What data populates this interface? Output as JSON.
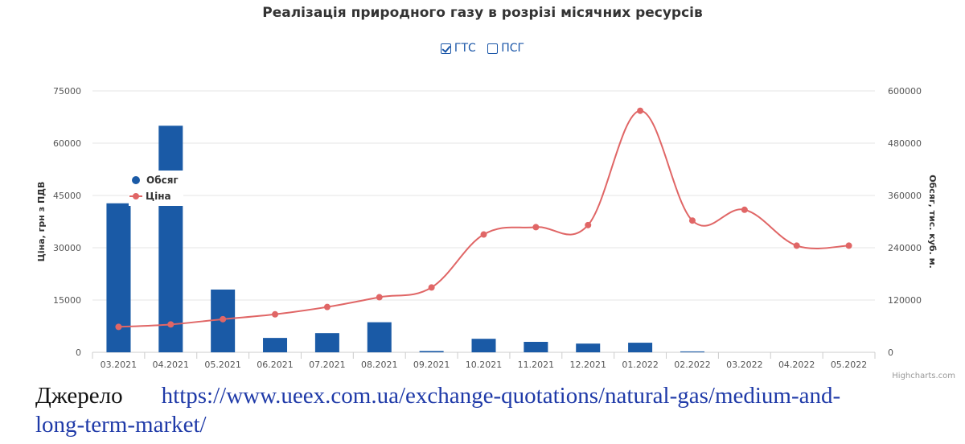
{
  "title": "Реалізація природного газу в розрізі місячних ресурсів",
  "filters": [
    {
      "label": "ГТС",
      "checked": true
    },
    {
      "label": "ПСГ",
      "checked": false
    }
  ],
  "credit": "Highcharts.com",
  "source": {
    "label": "Джерело",
    "url_part1": "https://www.ueex.com.ua/exchange-quotations/natural-gas/medium-and-",
    "url_part2": "long-term-market/"
  },
  "legend": {
    "volume": "Обсяг",
    "price": "Ціна"
  },
  "colors": {
    "bars": "#1a5aa6",
    "line": "#e06666",
    "grid": "#e6e6e6",
    "text": "#333333"
  },
  "chart_data": {
    "type": "bar+line",
    "title": "Реалізація природного газу в розрізі місячних ресурсів",
    "categories": [
      "03.2021",
      "04.2021",
      "05.2021",
      "06.2021",
      "07.2021",
      "08.2021",
      "09.2021",
      "10.2021",
      "11.2021",
      "12.2021",
      "01.2022",
      "02.2022",
      "03.2022",
      "04.2022",
      "05.2022"
    ],
    "y_left": {
      "label": "Ціна, грн з ПДВ",
      "min": 0,
      "max": 75000,
      "ticks": [
        0,
        15000,
        30000,
        45000,
        60000,
        75000
      ]
    },
    "y_right": {
      "label": "Обсяг, тис. куб. м.",
      "min": 0,
      "max": 600000,
      "ticks": [
        0,
        120000,
        240000,
        360000,
        480000,
        600000
      ]
    },
    "series": [
      {
        "name": "Обсяг",
        "type": "bar",
        "axis": "right",
        "values": [
          342000,
          520000,
          144000,
          33000,
          44000,
          69000,
          3000,
          31000,
          24000,
          20000,
          22000,
          2000,
          0,
          0,
          0
        ],
        "secondary_values": [
          332000,
          null,
          null,
          null,
          null,
          null,
          null,
          null,
          null,
          null,
          null,
          null,
          null,
          null,
          null
        ]
      },
      {
        "name": "Ціна",
        "type": "line",
        "axis": "left",
        "values": [
          7300,
          8000,
          9500,
          10900,
          13000,
          15800,
          18600,
          33800,
          35900,
          36500,
          69300,
          37800,
          40900,
          30600,
          30600
        ]
      }
    ],
    "grid": true,
    "legend_position": "top-left"
  }
}
